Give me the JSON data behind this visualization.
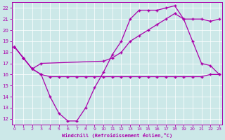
{
  "bg_color": "#cce8e8",
  "line_color": "#aa00aa",
  "grid_color": "#aacccc",
  "xlim": [
    -0.3,
    23.3
  ],
  "ylim": [
    11.5,
    22.5
  ],
  "yticks": [
    12,
    13,
    14,
    15,
    16,
    17,
    18,
    19,
    20,
    21,
    22
  ],
  "xticks": [
    0,
    1,
    2,
    3,
    4,
    5,
    6,
    7,
    8,
    9,
    10,
    11,
    12,
    13,
    14,
    15,
    16,
    17,
    18,
    19,
    20,
    21,
    22,
    23
  ],
  "xlabel": "Windchill (Refroidissement éolien,°C)",
  "line1_x": [
    0,
    1,
    2,
    3,
    4,
    5,
    6,
    7,
    8,
    9,
    10,
    11,
    12,
    13,
    14,
    15,
    16,
    17,
    18,
    19,
    20,
    21,
    22,
    23
  ],
  "line1_y": [
    18.5,
    17.5,
    16.5,
    16.0,
    14.0,
    12.5,
    11.8,
    11.8,
    13.0,
    14.8,
    16.2,
    17.8,
    19.0,
    21.0,
    21.8,
    21.8,
    21.8,
    22.0,
    22.2,
    21.0,
    19.0,
    17.0,
    16.8,
    16.0
  ],
  "line2_x": [
    0,
    1,
    2,
    3,
    10,
    11,
    12,
    13,
    14,
    15,
    16,
    17,
    18,
    19,
    20,
    21,
    22,
    23
  ],
  "line2_y": [
    18.5,
    17.5,
    16.5,
    17.0,
    17.2,
    17.5,
    18.0,
    19.0,
    19.5,
    20.0,
    20.5,
    21.0,
    21.5,
    21.0,
    21.0,
    21.0,
    20.8,
    21.0
  ],
  "line3_x": [
    0,
    1,
    2,
    3,
    4,
    5,
    6,
    7,
    8,
    9,
    10,
    11,
    12,
    13,
    14,
    15,
    16,
    17,
    18,
    19,
    20,
    21,
    22,
    23
  ],
  "line3_y": [
    18.5,
    17.5,
    16.5,
    16.0,
    15.8,
    15.8,
    15.8,
    15.8,
    15.8,
    15.8,
    15.8,
    15.8,
    15.8,
    15.8,
    15.8,
    15.8,
    15.8,
    15.8,
    15.8,
    15.8,
    15.8,
    15.8,
    16.0,
    16.0
  ],
  "marker": "+",
  "markersize": 3.5,
  "linewidth": 0.9
}
